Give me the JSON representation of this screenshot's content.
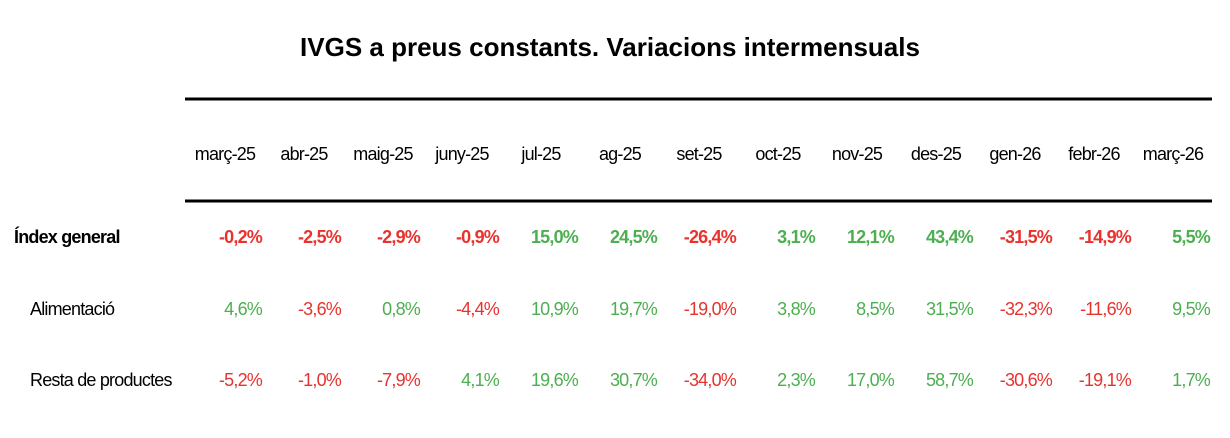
{
  "title": "IVGS a preus constants. Variacions intermensuals",
  "table": {
    "columns": [
      "març-25",
      "abr-25",
      "maig-25",
      "juny-25",
      "jul-25",
      "ag-25",
      "set-25",
      "oct-25",
      "nov-25",
      "des-25",
      "gen-26",
      "febr-26",
      "març-26"
    ],
    "rows": [
      {
        "label": "Índex general",
        "values": [
          "-0,2%",
          "-2,5%",
          "-2,9%",
          "-0,9%",
          "15,0%",
          "24,5%",
          "-26,4%",
          "3,1%",
          "12,1%",
          "43,4%",
          "-31,5%",
          "-14,9%",
          "5,5%"
        ]
      },
      {
        "label": "Alimentació",
        "values": [
          "4,6%",
          "-3,6%",
          "0,8%",
          "-4,4%",
          "10,9%",
          "19,7%",
          "-19,0%",
          "3,8%",
          "8,5%",
          "31,5%",
          "-32,3%",
          "-11,6%",
          "9,5%"
        ]
      },
      {
        "label": "Resta de productes",
        "values": [
          "-5,2%",
          "-1,0%",
          "-7,9%",
          "4,1%",
          "19,6%",
          "30,7%",
          "-34,0%",
          "2,3%",
          "17,0%",
          "58,7%",
          "-30,6%",
          "-19,1%",
          "1,7%"
        ]
      }
    ]
  }
}
